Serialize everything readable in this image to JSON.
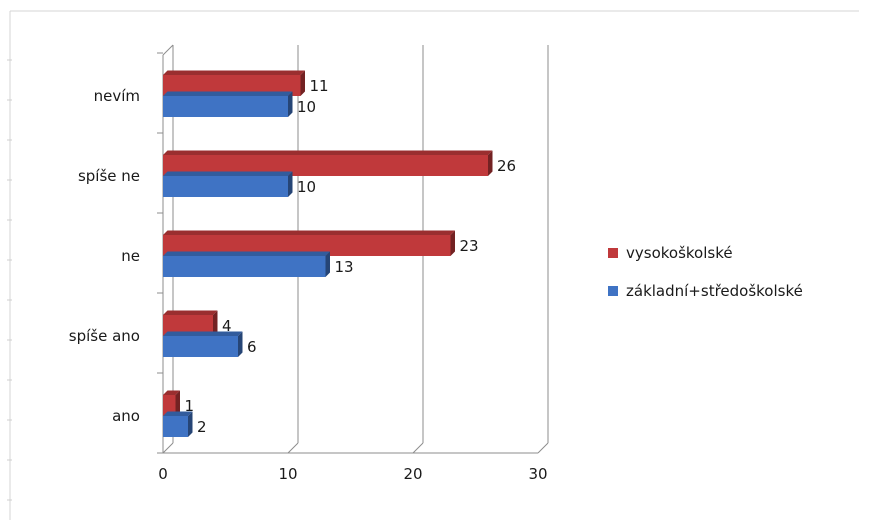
{
  "chart_data": {
    "type": "bar",
    "orientation": "horizontal",
    "style": "3d-clustered",
    "title": "",
    "xlabel": "",
    "ylabel": "",
    "categories": [
      "ano",
      "spíše ano",
      "ne",
      "spíše ne",
      "nevím"
    ],
    "series": [
      {
        "name": "vysokoškolské",
        "color": "#c0393b",
        "values": [
          1,
          4,
          23,
          26,
          11
        ]
      },
      {
        "name": "základní+středoškolské",
        "color": "#3f73c4",
        "values": [
          2,
          6,
          13,
          10,
          10
        ]
      }
    ],
    "xlim": [
      0,
      30
    ],
    "x_ticks": [
      0,
      10,
      20,
      30
    ],
    "grid": "vertical",
    "legend_position": "right"
  }
}
